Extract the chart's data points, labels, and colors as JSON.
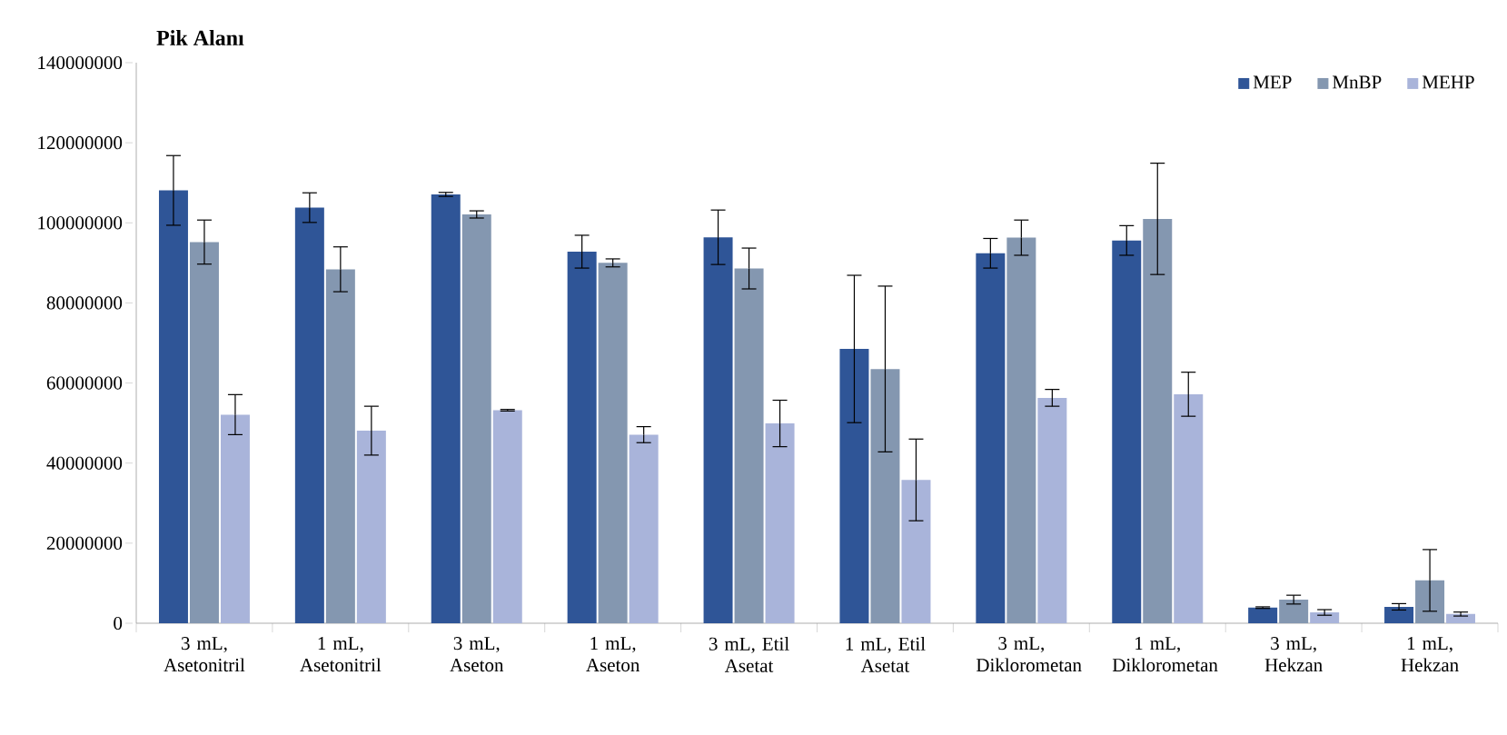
{
  "chart_data": {
    "type": "bar",
    "title": "Pik Alanı",
    "categories": [
      "3 mL, Asetonitril",
      "1 mL, Asetonitril",
      "3 mL, Aseton",
      "1 mL, Aseton",
      "3 mL, Etil Asetat",
      "1 mL, Etil Asetat",
      "3 mL, Diklorometan",
      "1 mL, Diklorometan",
      "3 mL, Hekzan",
      "1 mL, Hekzan"
    ],
    "series": [
      {
        "name": "MEP",
        "color": "#2f5597",
        "values": [
          108100000,
          103800000,
          107100000,
          92800000,
          96400000,
          68500000,
          92400000,
          95600000,
          3900000,
          4100000
        ],
        "errors": [
          8700000,
          3700000,
          500000,
          4100000,
          6800000,
          18400000,
          3700000,
          3700000,
          200000,
          800000
        ]
      },
      {
        "name": "MnBP",
        "color": "#8497b0",
        "values": [
          95200000,
          88400000,
          102100000,
          90000000,
          88600000,
          63500000,
          96300000,
          101000000,
          5900000,
          10700000
        ],
        "errors": [
          5500000,
          5600000,
          900000,
          1000000,
          5100000,
          20700000,
          4400000,
          13900000,
          1100000,
          7700000
        ]
      },
      {
        "name": "MEHP",
        "color": "#a9b4da",
        "values": [
          52100000,
          48100000,
          53200000,
          47100000,
          49900000,
          35800000,
          56300000,
          57200000,
          2700000,
          2300000
        ],
        "errors": [
          5000000,
          6100000,
          200000,
          2000000,
          5800000,
          10200000,
          2100000,
          5500000,
          700000,
          500000
        ]
      }
    ],
    "ylim": [
      0,
      140000000
    ],
    "yticks": [
      0,
      20000000,
      40000000,
      60000000,
      80000000,
      100000000,
      120000000,
      140000000
    ],
    "grid": false,
    "legend": "top right"
  }
}
